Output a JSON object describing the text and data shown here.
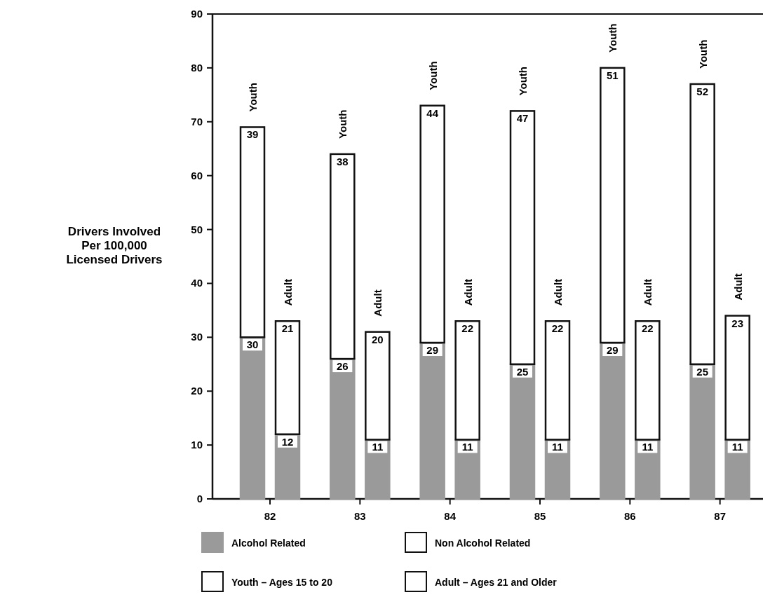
{
  "chart_data": {
    "type": "bar",
    "stacked": true,
    "categories": [
      "Youth",
      "Adult",
      "Youth",
      "Adult",
      "Youth",
      "Adult",
      "Youth",
      "Adult",
      "Youth",
      "Adult",
      "Youth",
      "Adult"
    ],
    "series": [
      {
        "name": "Alcohol Related",
        "color": "#9a9a9a",
        "values": [
          30,
          12,
          26,
          11,
          29,
          11,
          25,
          11,
          29,
          11,
          25,
          11
        ]
      },
      {
        "name": "Non Alcohol Related",
        "color": "#ffffff",
        "values": [
          39,
          21,
          38,
          20,
          44,
          22,
          47,
          22,
          51,
          22,
          52,
          23
        ]
      }
    ],
    "data_labels": true,
    "ylabel": "Drivers Involved Per 100,000 Licensed Drivers",
    "ylim": [
      0,
      90
    ],
    "yticks": [
      0,
      10,
      20,
      30,
      40,
      50,
      60,
      70,
      80,
      90
    ],
    "annotations": [
      "82",
      "83",
      "84",
      "85",
      "86",
      "87",
      "Youth – Ages 15 to 20",
      "Adult – Ages 21 and Older"
    ],
    "legend": "bottom",
    "grid": false
  }
}
